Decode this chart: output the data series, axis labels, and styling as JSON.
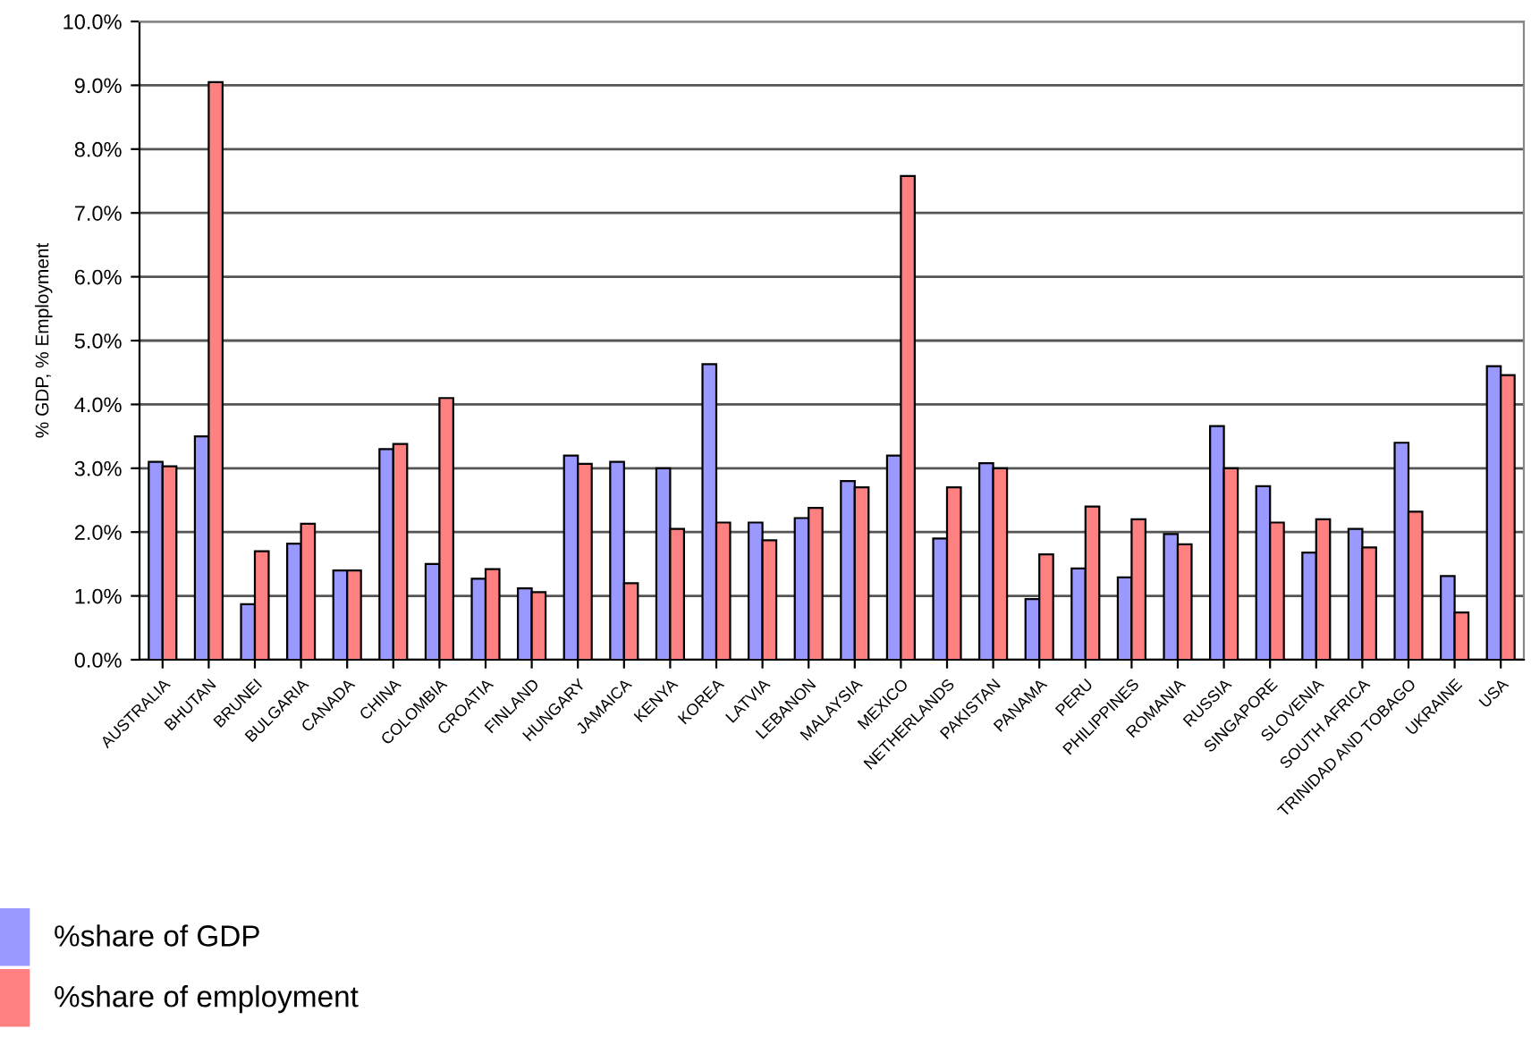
{
  "chart_data": {
    "type": "bar",
    "ylabel": "% GDP, % Employment",
    "categories": [
      "AUSTRALIA",
      "BHUTAN",
      "BRUNEI",
      "BULGARIA",
      "CANADA",
      "CHINA",
      "COLOMBIA",
      "CROATIA",
      "FINLAND",
      "HUNGARY",
      "JAMAICA",
      "KENYA",
      "KOREA",
      "LATVIA",
      "LEBANON",
      "MALAYSIA",
      "MEXICO",
      "NETHERLANDS",
      "PAKISTAN",
      "PANAMA",
      "PERU",
      "PHILIPPINES",
      "ROMANIA",
      "RUSSIA",
      "SINGAPORE",
      "SLOVENIA",
      "SOUTH AFRICA",
      "TRINIDAD AND TOBAGO",
      "UKRAINE",
      "USA"
    ],
    "series": [
      {
        "name": "%share of GDP",
        "color": "#9999ff",
        "values": [
          3.1,
          3.5,
          0.87,
          1.82,
          1.4,
          3.3,
          1.5,
          1.27,
          1.12,
          3.2,
          3.1,
          3.0,
          4.63,
          2.15,
          2.22,
          2.8,
          3.2,
          1.9,
          3.08,
          0.95,
          1.43,
          1.29,
          1.97,
          3.66,
          2.72,
          1.68,
          2.05,
          3.4,
          1.31,
          4.6
        ]
      },
      {
        "name": "%share of employment",
        "color": "#ff8080",
        "values": [
          3.03,
          9.05,
          1.7,
          2.13,
          1.4,
          3.38,
          4.1,
          1.42,
          1.06,
          3.07,
          1.2,
          2.05,
          2.15,
          1.87,
          2.38,
          2.7,
          7.58,
          2.7,
          3.0,
          1.65,
          2.4,
          2.2,
          1.81,
          3.0,
          2.15,
          2.2,
          1.76,
          2.32,
          0.74,
          4.46
        ]
      }
    ],
    "ylim": [
      0,
      10
    ],
    "yticks": [
      {
        "value": 0,
        "label": "0.0%"
      },
      {
        "value": 1,
        "label": "1.0%"
      },
      {
        "value": 2,
        "label": "2.0%"
      },
      {
        "value": 3,
        "label": "3.0%"
      },
      {
        "value": 4,
        "label": "4.0%"
      },
      {
        "value": 5,
        "label": "5.0%"
      },
      {
        "value": 6,
        "label": "6.0%"
      },
      {
        "value": 7,
        "label": "7.0%"
      },
      {
        "value": 8,
        "label": "8.0%"
      },
      {
        "value": 9,
        "label": "9.0%"
      },
      {
        "value": 10,
        "label": "10.0%"
      }
    ],
    "grid": "y",
    "legend": "bottom left"
  }
}
